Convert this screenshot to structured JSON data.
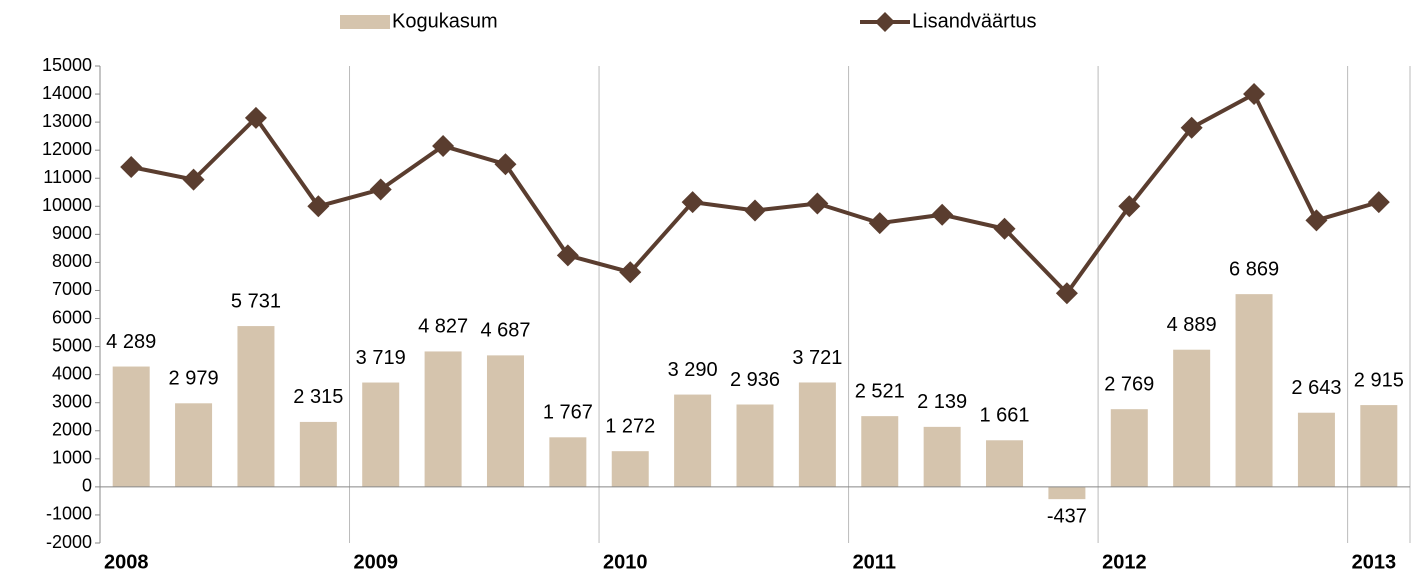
{
  "chart_data": {
    "type": "bar-line",
    "categories": [
      "2008",
      null,
      null,
      null,
      "2009",
      null,
      null,
      null,
      "2010",
      null,
      null,
      null,
      "2011",
      null,
      null,
      null,
      "2012",
      null,
      null,
      null,
      "2013"
    ],
    "series": [
      {
        "name": "Kogukasum",
        "type": "bar",
        "color": "#d5c4ad",
        "values": [
          4289,
          2979,
          5731,
          2315,
          3719,
          4827,
          4687,
          1767,
          1272,
          3290,
          2936,
          3721,
          2521,
          2139,
          1661,
          -437,
          2769,
          4889,
          6869,
          2643,
          2915
        ],
        "value_labels": [
          "4 289",
          "2 979",
          "5 731",
          "2 315",
          "3 719",
          "4 827",
          "4 687",
          "1 767",
          "1 272",
          "3 290",
          "2 936",
          "3 721",
          "2 521",
          "2 139",
          "1 661",
          "-437",
          "2 769",
          "4 889",
          "6 869",
          "2 643",
          "2 915"
        ]
      },
      {
        "name": "Lisandväärtus",
        "type": "line",
        "color": "#5a3d2f",
        "values": [
          11400,
          10950,
          13150,
          10000,
          10600,
          12150,
          11500,
          8250,
          7650,
          10150,
          9850,
          10100,
          9400,
          9700,
          9200,
          6900,
          10000,
          12800,
          14000,
          9500,
          10150
        ]
      }
    ],
    "ylim": [
      -2000,
      15000
    ],
    "yticks": [
      -2000,
      -1000,
      0,
      1000,
      2000,
      3000,
      4000,
      5000,
      6000,
      7000,
      8000,
      9000,
      10000,
      11000,
      12000,
      13000,
      14000,
      15000
    ],
    "legend": "top"
  }
}
